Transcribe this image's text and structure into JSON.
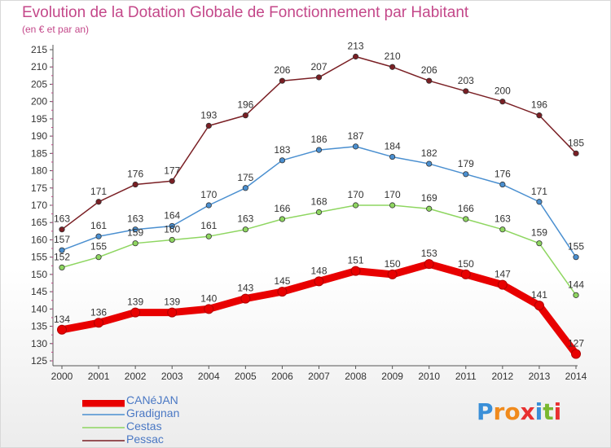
{
  "header": {
    "title": "Evolution de la Dotation Globale de Fonctionnement par Habitant",
    "subtitle": "(en € et par an)"
  },
  "logo": {
    "text": "Proxiti",
    "letters": [
      "P",
      "r",
      "o",
      "x",
      "i",
      "t",
      "i"
    ],
    "colors": [
      "#3a8fd8",
      "#f08a1c",
      "#f08a1c",
      "#e83030",
      "#3a8fd8",
      "#7ab830",
      "#e83030"
    ]
  },
  "chart_data": {
    "type": "line",
    "title": "Evolution de la Dotation Globale de Fonctionnement par Habitant",
    "subtitle": "(en € et par an)",
    "x": [
      "2000",
      "2001",
      "2002",
      "2003",
      "2004",
      "2005",
      "2006",
      "2007",
      "2008",
      "2009",
      "2010",
      "2011",
      "2012",
      "2013",
      "2014"
    ],
    "ylim": [
      125,
      215
    ],
    "yticks": [
      125,
      130,
      135,
      140,
      145,
      150,
      155,
      160,
      165,
      170,
      175,
      180,
      185,
      190,
      195,
      200,
      205,
      210,
      215
    ],
    "grid": false,
    "legend_position": "bottom-left",
    "series": [
      {
        "name": "CANéJAN",
        "color": "#e80000",
        "emphasis": true,
        "values": [
          134,
          136,
          139,
          139,
          140,
          143,
          145,
          148,
          151,
          150,
          153,
          150,
          147,
          141,
          127
        ]
      },
      {
        "name": "Gradignan",
        "color": "#4a8fd0",
        "emphasis": false,
        "values": [
          157,
          161,
          163,
          164,
          170,
          175,
          183,
          186,
          187,
          184,
          182,
          179,
          176,
          171,
          155
        ]
      },
      {
        "name": "Cestas",
        "color": "#8ed660",
        "emphasis": false,
        "values": [
          152,
          155,
          159,
          160,
          161,
          163,
          166,
          168,
          170,
          170,
          169,
          166,
          163,
          159,
          144
        ]
      },
      {
        "name": "Pessac",
        "color": "#7a1f24",
        "emphasis": false,
        "values": [
          163,
          171,
          176,
          177,
          193,
          196,
          206,
          207,
          213,
          210,
          206,
          203,
          200,
          196,
          185
        ]
      }
    ]
  }
}
